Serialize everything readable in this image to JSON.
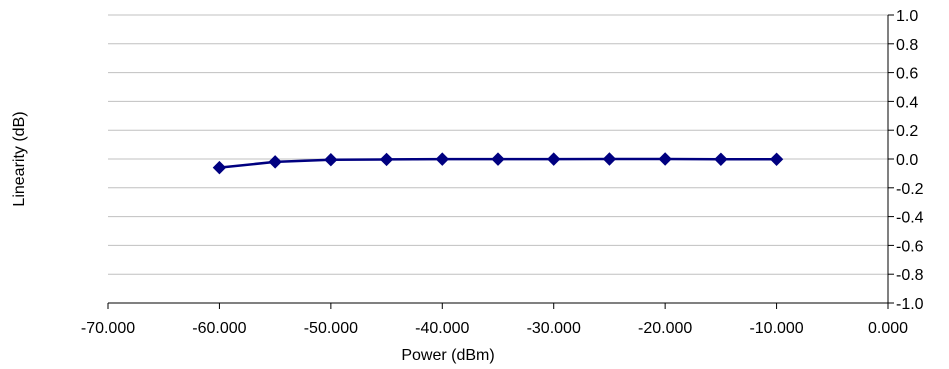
{
  "chart_data": {
    "type": "line",
    "title": "",
    "xlabel": "Power (dBm)",
    "ylabel": "Linearity (dB)",
    "xlim": [
      -70,
      0
    ],
    "ylim": [
      -1.0,
      1.0
    ],
    "x_tick_labels": [
      "-70.000",
      "-60.000",
      "-50.000",
      "-40.000",
      "-30.000",
      "-20.000",
      "-10.000",
      "0.000"
    ],
    "y_tick_labels": [
      "-1.0",
      "-0.8",
      "-0.6",
      "-0.4",
      "-0.2",
      "0.0",
      "0.2",
      "0.4",
      "0.6",
      "0.8",
      "1.0"
    ],
    "x_ticks": [
      -70,
      -60,
      -50,
      -40,
      -30,
      -20,
      -10,
      0
    ],
    "y_ticks": [
      -1.0,
      -0.8,
      -0.6,
      -0.4,
      -0.2,
      0.0,
      0.2,
      0.4,
      0.6,
      0.8,
      1.0
    ],
    "y_axis_side": "right",
    "grid": "horizontal",
    "legend": "none",
    "series": [
      {
        "x": [
          -60,
          -55,
          -50,
          -45,
          -40,
          -35,
          -30,
          -25,
          -20,
          -15,
          -10
        ],
        "y": [
          -0.06,
          -0.02,
          -0.005,
          -0.003,
          -0.001,
          -0.001,
          -0.001,
          0.0,
          0.0,
          -0.002,
          -0.002
        ],
        "color": "#000080",
        "marker": "diamond"
      }
    ],
    "colors": {
      "line": "#000080",
      "grid": "#c0c0c0",
      "axis": "#000000"
    }
  }
}
